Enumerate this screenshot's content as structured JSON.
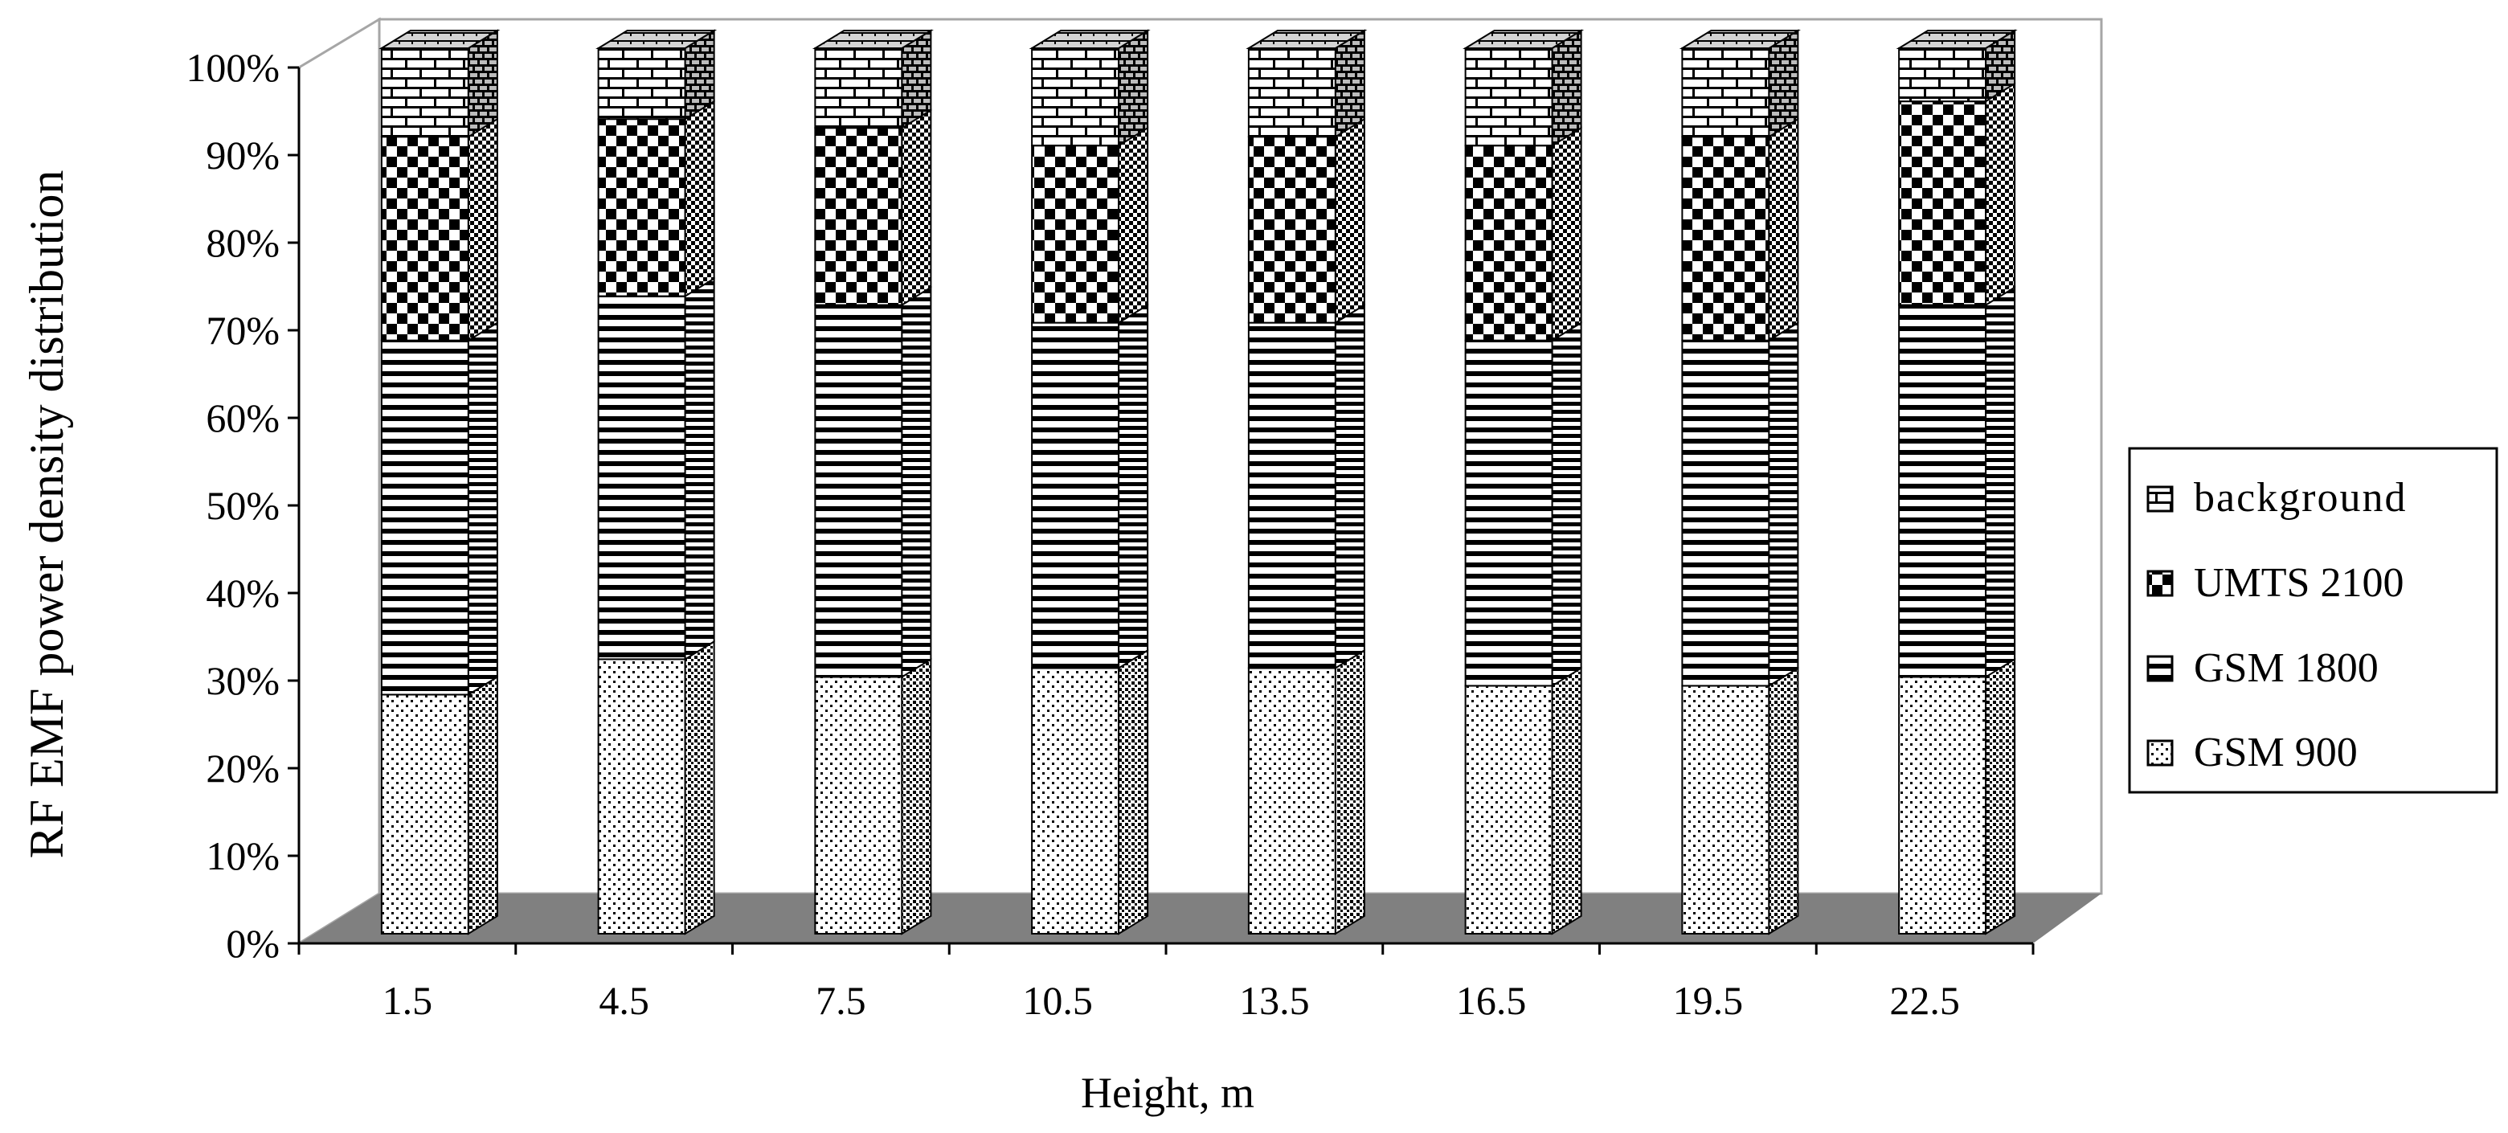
{
  "chart_data": {
    "type": "bar",
    "stacked": true,
    "three_d": true,
    "title": "",
    "xlabel": "Height, m",
    "ylabel": "RF EMF power density distribution",
    "ylim": [
      0,
      100
    ],
    "y_unit": "%",
    "y_ticks": [
      "0%",
      "10%",
      "20%",
      "30%",
      "40%",
      "50%",
      "60%",
      "70%",
      "80%",
      "90%",
      "100%"
    ],
    "categories": [
      "1.5",
      "4.5",
      "7.5",
      "10.5",
      "13.5",
      "16.5",
      "19.5",
      "22.5"
    ],
    "series": [
      {
        "name": "GSM 900",
        "pattern": "dots",
        "values": [
          27,
          31,
          29,
          30,
          30,
          28,
          28,
          29
        ]
      },
      {
        "name": "GSM 1800",
        "pattern": "horizontal-lines",
        "values": [
          40,
          41,
          42,
          39,
          39,
          39,
          39,
          42
        ]
      },
      {
        "name": "UMTS 2100",
        "pattern": "checkerboard",
        "values": [
          23,
          20,
          20,
          20,
          21,
          22,
          23,
          23
        ]
      },
      {
        "name": "background",
        "pattern": "brick",
        "values": [
          10,
          8,
          9,
          11,
          10,
          11,
          10,
          6
        ]
      }
    ],
    "grid": false,
    "legend_position": "right",
    "colors": {
      "floor": "#808080",
      "wall_border": "#a6a6a6",
      "ink": "#000000",
      "bar_side": "#b4b4b4"
    }
  }
}
